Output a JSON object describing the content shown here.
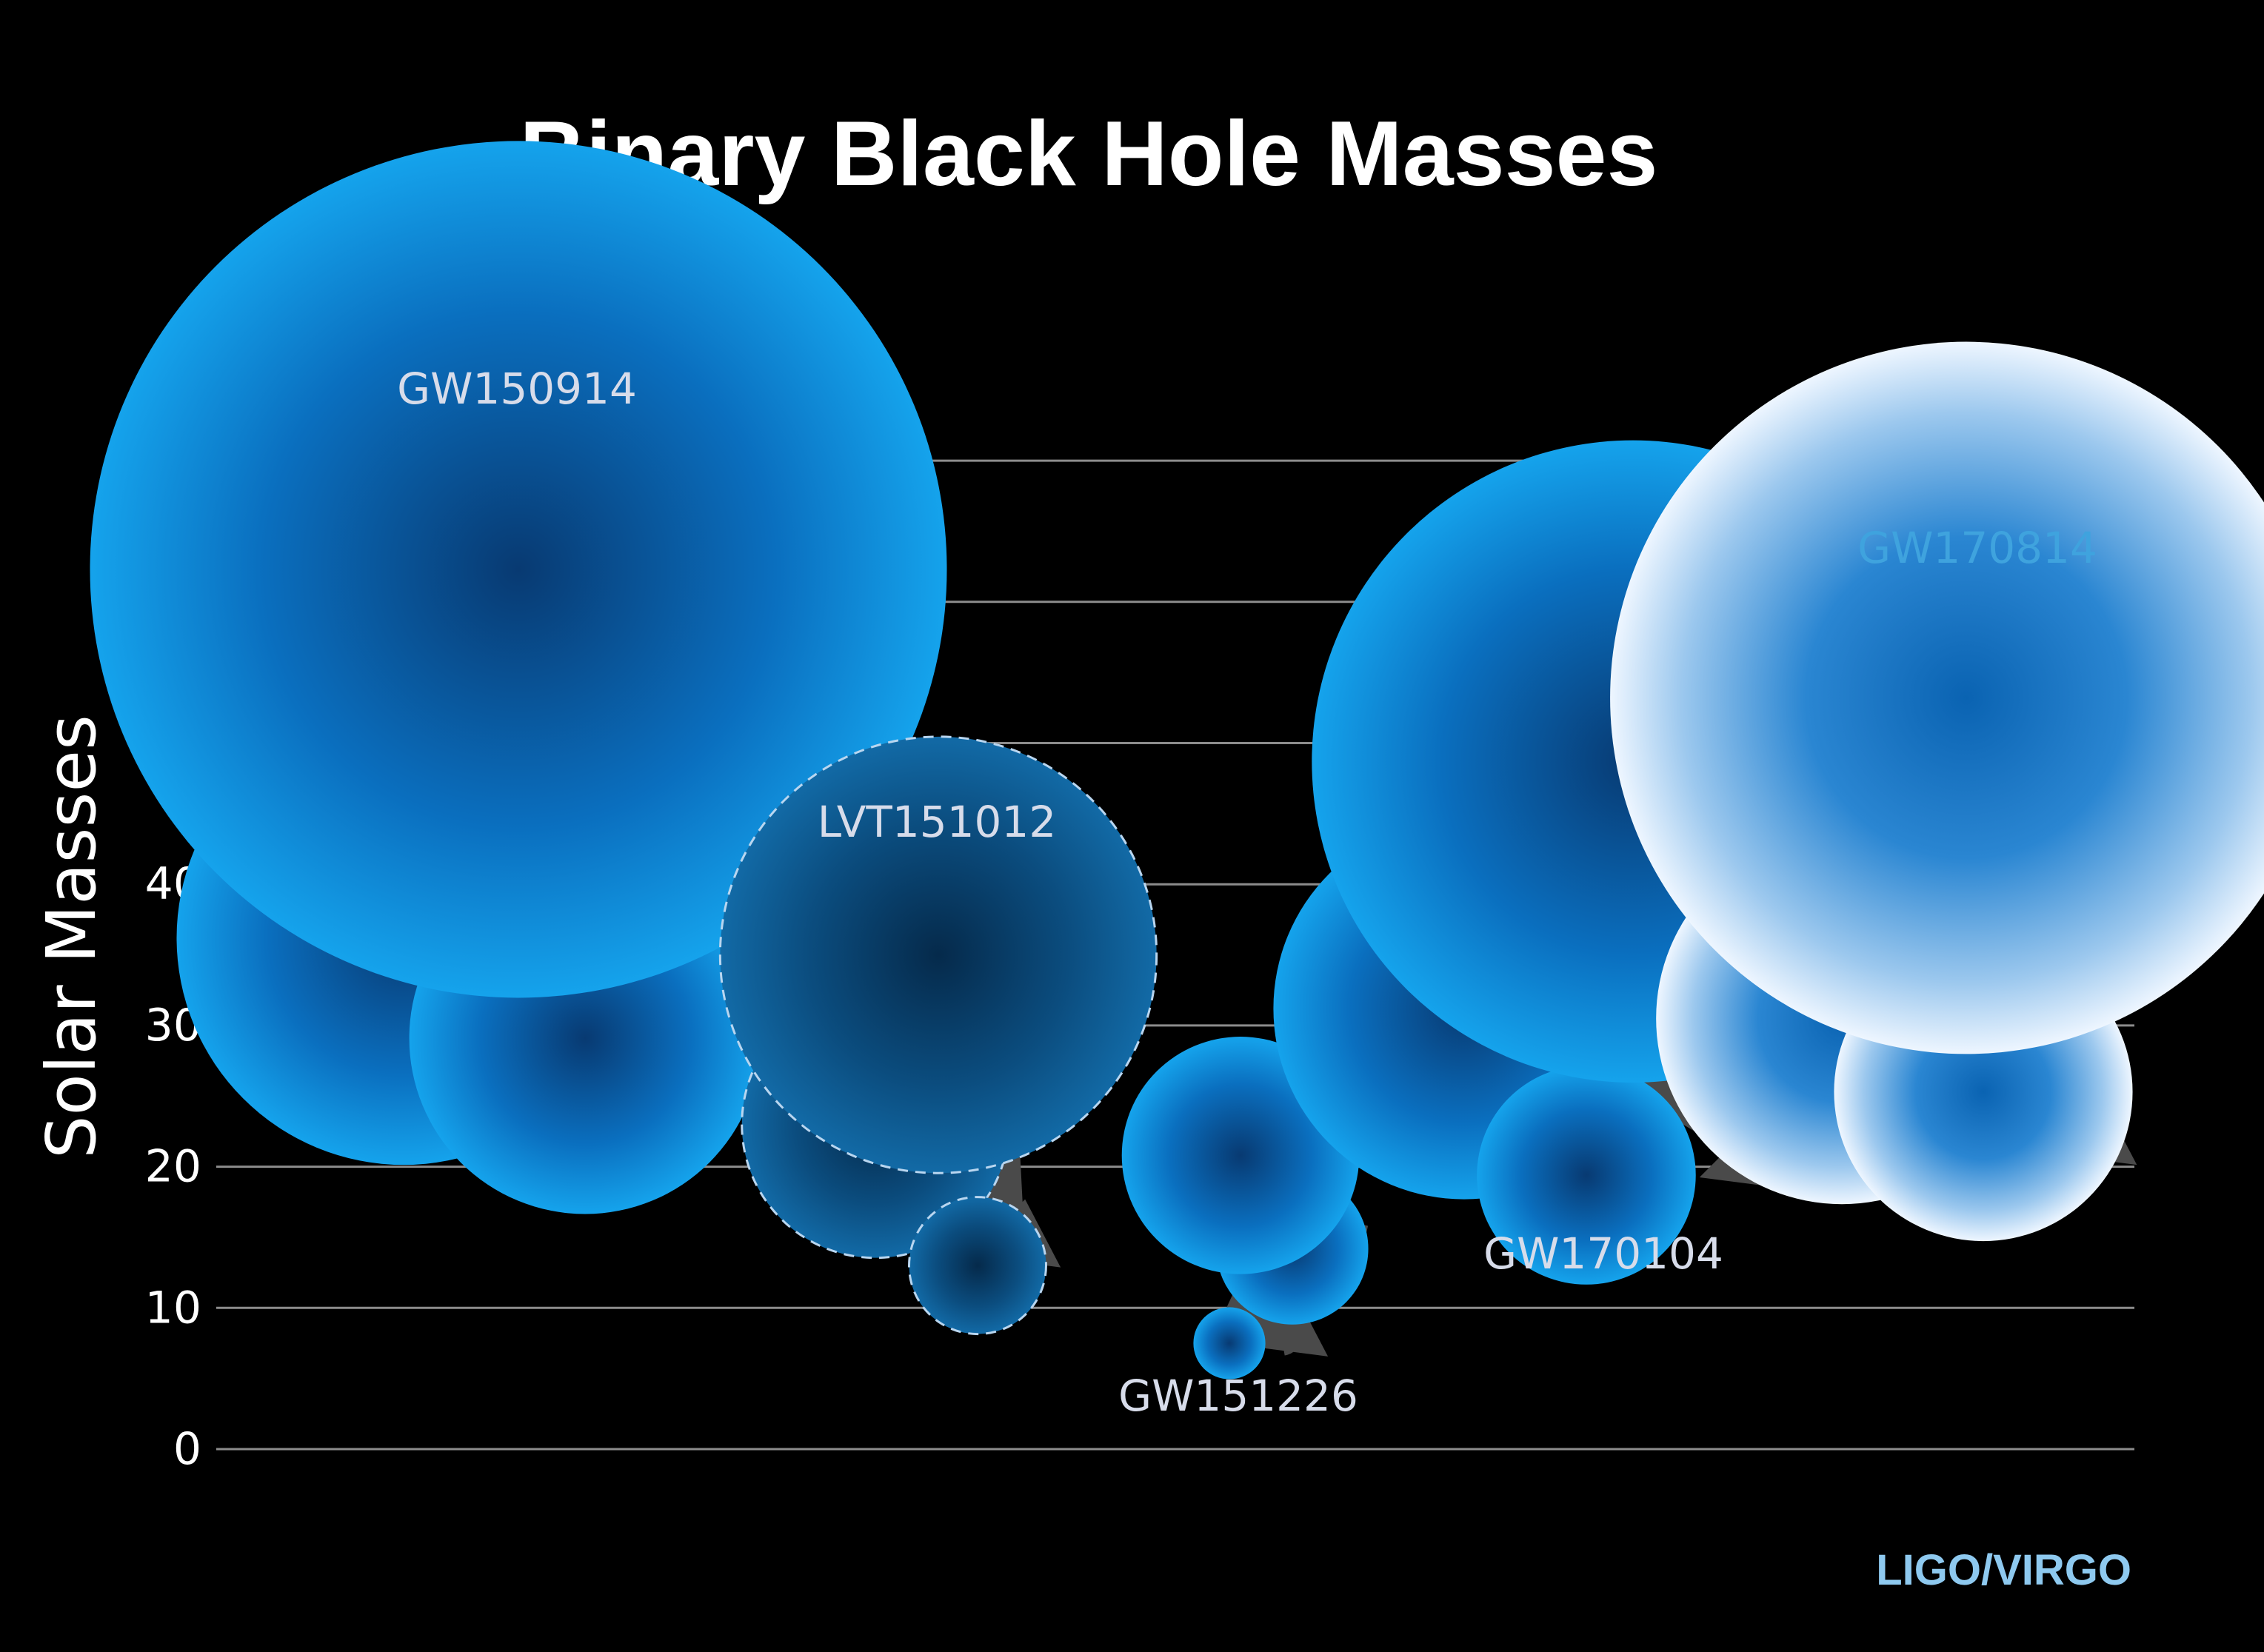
{
  "chart_data": {
    "type": "scatter",
    "title": "Binary Black Hole Masses",
    "ylabel": "Solar Masses",
    "xlabel": "",
    "ylim": [
      0,
      70
    ],
    "yticks": [
      0,
      10,
      20,
      30,
      40,
      50,
      60,
      70
    ],
    "grid": true,
    "credit": "LIGO/VIRGO",
    "events": [
      {
        "name": "GW150914",
        "label_color": "#d7dcea",
        "style": "solid",
        "primary": 36.2,
        "secondary": 29.1,
        "final": 62.3
      },
      {
        "name": "LVT151012",
        "label_color": "#d7dcea",
        "style": "dashed",
        "primary": 23,
        "secondary": 13,
        "final": 35
      },
      {
        "name": "GW151226",
        "label_color": "#d7dcea",
        "style": "solid",
        "primary": 14.2,
        "secondary": 7.5,
        "final": 20.8
      },
      {
        "name": "GW170104",
        "label_color": "#d7dcea",
        "style": "solid",
        "primary": 31.2,
        "secondary": 19.4,
        "final": 48.7
      },
      {
        "name": "GW170814",
        "label_color": "#3fa3de",
        "style": "glow",
        "primary": 30.5,
        "secondary": 25.3,
        "final": 53.2
      }
    ]
  }
}
